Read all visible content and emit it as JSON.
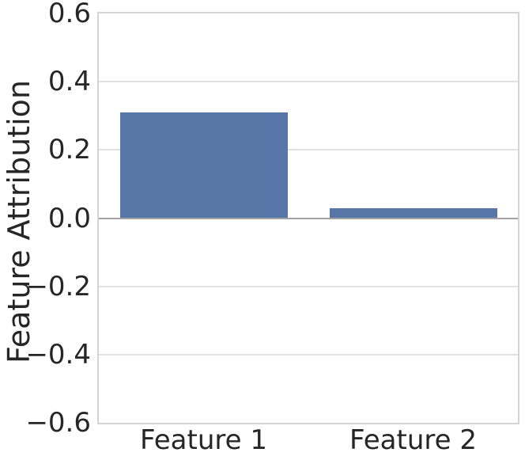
{
  "chart_data": {
    "type": "bar",
    "categories": [
      "Feature 1",
      "Feature 2"
    ],
    "values": [
      0.31,
      0.03
    ],
    "title": "",
    "xlabel": "",
    "ylabel": "Feature Attribution",
    "ylim": [
      -0.6,
      0.6
    ],
    "yticks": [
      0.6,
      0.4,
      0.2,
      0,
      -0.2,
      -0.4,
      -0.6
    ],
    "ytick_labels": [
      "0.6",
      "0.4",
      "0.2",
      "0.0",
      "−0.2",
      "−0.4",
      "−0.6"
    ],
    "bar_width_fraction": 0.8,
    "grid": true,
    "legend": false,
    "colors": {
      "bar": "#5776a8",
      "grid_line": "#e2e2e2",
      "zero_line": "#a3a3a3",
      "spine": "#d4d4d4",
      "text": "#262626",
      "background": "#ffffff"
    }
  }
}
